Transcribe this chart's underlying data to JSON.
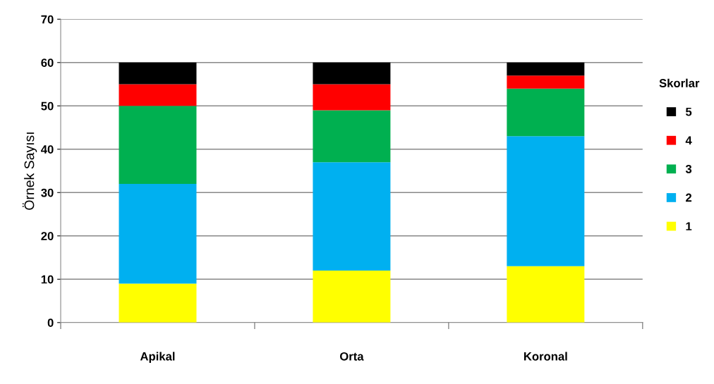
{
  "chart_data": {
    "type": "bar",
    "stacked": true,
    "ylabel": "Örnek Sayısı",
    "legend_title": "Skorlar",
    "legend": "right",
    "categories": [
      "Apikal",
      "Orta",
      "Koronal"
    ],
    "series": [
      {
        "name": "1",
        "color": "#ffff00",
        "values": [
          9,
          12,
          13
        ]
      },
      {
        "name": "2",
        "color": "#00b0f0",
        "values": [
          23,
          25,
          30
        ]
      },
      {
        "name": "3",
        "color": "#00b050",
        "values": [
          18,
          12,
          11
        ]
      },
      {
        "name": "4",
        "color": "#ff0000",
        "values": [
          5,
          6,
          3
        ]
      },
      {
        "name": "5",
        "color": "#000000",
        "values": [
          5,
          5,
          3
        ]
      }
    ],
    "ylim": [
      0,
      70
    ],
    "yticks": [
      0,
      10,
      20,
      30,
      40,
      50,
      60,
      70
    ],
    "grid": "y"
  }
}
